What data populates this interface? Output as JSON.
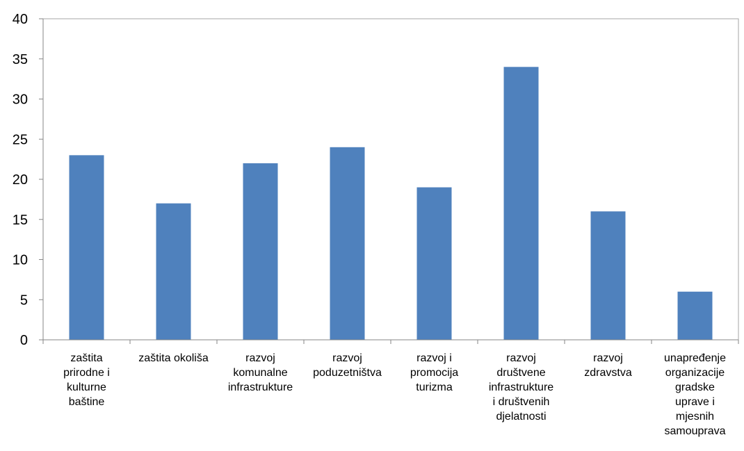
{
  "chart_data": {
    "type": "bar",
    "categories": [
      [
        "zaštita",
        "prirodne i",
        "kulturne",
        "baštine"
      ],
      [
        "zaštita okoliša"
      ],
      [
        "razvoj",
        "komunalne",
        "infrastrukture"
      ],
      [
        "razvoj",
        "poduzetništva"
      ],
      [
        "razvoj i",
        "promocija",
        "turizma"
      ],
      [
        "razvoj",
        "društvene",
        "infrastrukture",
        "i društvenih",
        "djelatnosti"
      ],
      [
        "razvoj",
        "zdravstva"
      ],
      [
        "unapređenje",
        "organizacije",
        "gradske",
        "uprave i",
        "mjesnih",
        "samouprava"
      ]
    ],
    "values": [
      23,
      17,
      22,
      24,
      19,
      34,
      16,
      6
    ],
    "ylim": [
      0,
      40
    ],
    "yticks": [
      0,
      5,
      10,
      15,
      20,
      25,
      30,
      35,
      40
    ],
    "title": "",
    "xlabel": "",
    "ylabel": "",
    "grid": false,
    "legend": "none",
    "colors": {
      "bar": "#4F81BD",
      "plot_border": "#A6A6A6",
      "axis": "#868686",
      "text": "#000000"
    }
  }
}
